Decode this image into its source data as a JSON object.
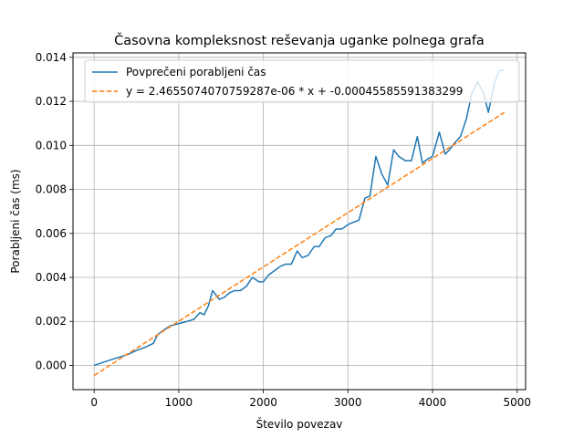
{
  "chart_data": {
    "type": "line",
    "title": "Časovna kompleksnost reševanja uganke polnega grafa",
    "xlabel": "Število povezav",
    "ylabel": "Porabljeni čas (ms)",
    "xlim": [
      -250,
      5100
    ],
    "ylim": [
      -0.0011,
      0.0142
    ],
    "xticks": [
      0,
      1000,
      2000,
      3000,
      4000,
      5000
    ],
    "xtick_labels": [
      "0",
      "1000",
      "2000",
      "3000",
      "4000",
      "5000"
    ],
    "yticks": [
      0.0,
      0.002,
      0.004,
      0.006,
      0.008,
      0.01,
      0.012,
      0.014
    ],
    "ytick_labels": [
      "0.000",
      "0.002",
      "0.004",
      "0.006",
      "0.008",
      "0.010",
      "0.012",
      "0.014"
    ],
    "grid": true,
    "legend_position": "top-left",
    "series": [
      {
        "name": "Povprečeni porabljeni čas",
        "color": "#1f77b4",
        "style": "solid",
        "x": [
          0,
          100,
          200,
          300,
          400,
          500,
          600,
          700,
          750,
          820,
          900,
          1000,
          1100,
          1180,
          1250,
          1300,
          1350,
          1400,
          1480,
          1540,
          1600,
          1660,
          1730,
          1800,
          1870,
          1950,
          2000,
          2060,
          2130,
          2200,
          2260,
          2330,
          2400,
          2460,
          2530,
          2600,
          2660,
          2730,
          2800,
          2860,
          2930,
          3000,
          3060,
          3130,
          3200,
          3260,
          3330,
          3400,
          3470,
          3540,
          3600,
          3680,
          3750,
          3820,
          3880,
          3950,
          4000,
          4080,
          4150,
          4200,
          4260,
          4330,
          4400,
          4460,
          4530,
          4600,
          4660,
          4730,
          4790,
          4850
        ],
        "y": [
          0.0,
          0.00013,
          0.00026,
          0.00038,
          0.0005,
          0.00068,
          0.00082,
          0.001,
          0.0014,
          0.0016,
          0.0018,
          0.0019,
          0.002,
          0.0021,
          0.0024,
          0.0023,
          0.0027,
          0.0034,
          0.003,
          0.0031,
          0.0033,
          0.0034,
          0.0034,
          0.0036,
          0.004,
          0.0038,
          0.0038,
          0.0041,
          0.0043,
          0.0045,
          0.0046,
          0.0046,
          0.0052,
          0.0049,
          0.005,
          0.0054,
          0.0054,
          0.0058,
          0.0059,
          0.0062,
          0.0062,
          0.0064,
          0.0065,
          0.0066,
          0.0076,
          0.0077,
          0.0095,
          0.0087,
          0.0082,
          0.0098,
          0.0095,
          0.0093,
          0.0093,
          0.0104,
          0.0092,
          0.0094,
          0.0095,
          0.0106,
          0.0096,
          0.0098,
          0.0101,
          0.0104,
          0.0112,
          0.0123,
          0.0129,
          0.0124,
          0.0115,
          0.0128,
          0.0134,
          0.0134
        ]
      },
      {
        "name": "y = 2.4655074070759287e-06 * x + -0.00045585591383299",
        "color": "#ff7f0e",
        "style": "dashed",
        "slope": 2.4655074070759287e-06,
        "intercept": -0.00045585591383299,
        "x": [
          0,
          4850
        ],
        "y": [
          -0.00045585591383299,
          0.011501855610485
        ]
      }
    ]
  }
}
